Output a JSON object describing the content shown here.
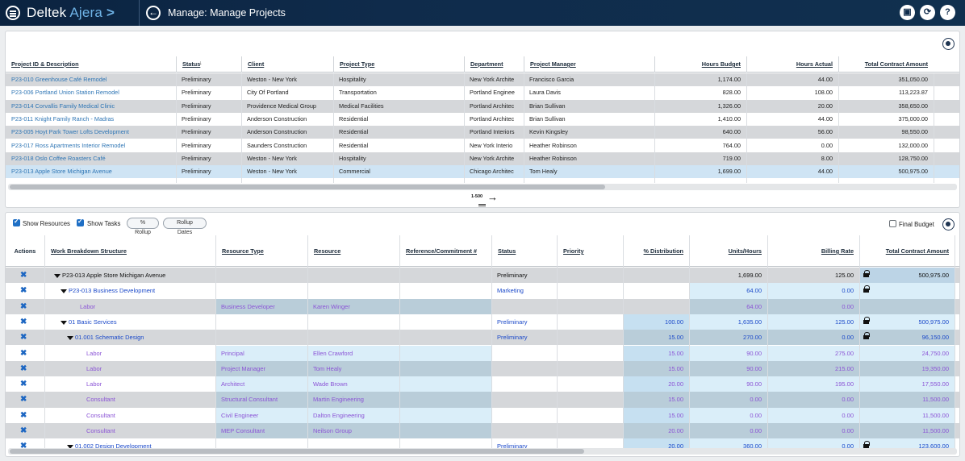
{
  "app": {
    "brand_main": "Deltek",
    "brand_sub": "Ajera",
    "brand_chevron": ">",
    "page_title": "Manage: Manage Projects"
  },
  "icons": {
    "menu": "hamburger-icon",
    "back": "back-arrow-icon",
    "save": "save-icon",
    "refresh": "refresh-icon",
    "help": "help-icon",
    "settings": "gear-icon",
    "tools": "wrench-icon",
    "lock": "lock-icon"
  },
  "projects": {
    "columns": [
      "Project ID & Description",
      "Status",
      "Client",
      "Project Type",
      "Department",
      "Project Manager",
      "Hours Budget",
      "Hours Actual",
      "Total Contract Amount"
    ],
    "sort_indicator": "↓",
    "rows": [
      [
        "P23-010 Greenhouse Café Remodel",
        "Preliminary",
        "Weston - New York",
        "Hospitality",
        "New York Archite",
        "Francisco Garcia",
        "1,174.00",
        "44.00",
        "351,050.00"
      ],
      [
        "P23-006 Portland Union Station Remodel",
        "Preliminary",
        "City Of Portland",
        "Transportation",
        "Portland Enginee",
        "Laura Davis",
        "828.00",
        "108.00",
        "113,223.87"
      ],
      [
        "P23-014 Corvallis Family Medical Clinic",
        "Preliminary",
        "Providence Medical Group",
        "Medical Facilities",
        "Portland Architec",
        "Brian Sullivan",
        "1,326.00",
        "20.00",
        "358,650.00"
      ],
      [
        "P23-011 Knight Family Ranch - Madras",
        "Preliminary",
        "Anderson Construction",
        "Residential",
        "Portland Architec",
        "Brian Sullivan",
        "1,410.00",
        "44.00",
        "375,000.00"
      ],
      [
        "P23-005 Hoyt Park Tower Lofts Development",
        "Preliminary",
        "Anderson Construction",
        "Residential",
        "Portland Interiors",
        "Kevin Kingsley",
        "640.00",
        "56.00",
        "98,550.00"
      ],
      [
        "P23-017 Ross Apartments Interior Remodel",
        "Preliminary",
        "Saunders Construction",
        "Residential",
        "New York Interio",
        "Heather Robinson",
        "764.00",
        "0.00",
        "132,000.00"
      ],
      [
        "P23-018 Oslo Coffee Roasters Café",
        "Preliminary",
        "Weston - New York",
        "Hospitality",
        "New York Archite",
        "Heather Robinson",
        "719.00",
        "8.00",
        "128,750.00"
      ],
      [
        "P23-013 Apple Store Michigan Avenue",
        "Preliminary",
        "Weston - New York",
        "Commercial",
        "Chicago Architec",
        "Tom Healy",
        "1,699.00",
        "44.00",
        "500,975.00"
      ]
    ],
    "pager": "1-500"
  },
  "wbs": {
    "show_resources_label": "Show Resources",
    "show_tasks_label": "Show Tasks",
    "rollup_pct_label": "% Rollup",
    "rollup_dates_label": "Rollup Dates",
    "final_budget_label": "Final Budget",
    "columns": [
      "Actions",
      "Work Breakdown Structure",
      "Resource Type",
      "Resource",
      "Reference/Commitment #",
      "Status",
      "Priority",
      "% Distribution",
      "Units/Hours",
      "Billing Rate",
      "Total Contract Amount"
    ],
    "rows": [
      {
        "wbs": "P23-013 Apple Store Michigan Avenue",
        "rtype": "",
        "res": "",
        "status": "Preliminary",
        "dist": "",
        "units": "1,699.00",
        "rate": "125.00",
        "total": "500,975.00"
      },
      {
        "wbs": "P23-013 Business Development",
        "rtype": "",
        "res": "",
        "status": "Marketing",
        "dist": "",
        "units": "64.00",
        "rate": "0.00",
        "total": ""
      },
      {
        "wbs": "Labor",
        "rtype": "Business Developer",
        "res": "Karen Winger",
        "status": "",
        "dist": "",
        "units": "64.00",
        "rate": "0.00",
        "total": ""
      },
      {
        "wbs": "01 Basic Services",
        "rtype": "",
        "res": "",
        "status": "Preliminary",
        "dist": "100.00",
        "units": "1,635.00",
        "rate": "125.00",
        "total": "500,975.00"
      },
      {
        "wbs": "01.001 Schematic Design",
        "rtype": "",
        "res": "",
        "status": "Preliminary",
        "dist": "15.00",
        "units": "270.00",
        "rate": "0.00",
        "total": "96,150.00"
      },
      {
        "wbs": "Labor",
        "rtype": "Principal",
        "res": "Ellen Crawford",
        "status": "",
        "dist": "15.00",
        "units": "90.00",
        "rate": "275.00",
        "total": "24,750.00"
      },
      {
        "wbs": "Labor",
        "rtype": "Project Manager",
        "res": "Tom Healy",
        "status": "",
        "dist": "15.00",
        "units": "90.00",
        "rate": "215.00",
        "total": "19,350.00"
      },
      {
        "wbs": "Labor",
        "rtype": "Architect",
        "res": "Wade Brown",
        "status": "",
        "dist": "20.00",
        "units": "90.00",
        "rate": "195.00",
        "total": "17,550.00"
      },
      {
        "wbs": "Consultant",
        "rtype": "Structural Consultant",
        "res": "Martin Engineering",
        "status": "",
        "dist": "15.00",
        "units": "0.00",
        "rate": "0.00",
        "total": "11,500.00"
      },
      {
        "wbs": "Consultant",
        "rtype": "Civil Engineer",
        "res": "Dalton Engineering",
        "status": "",
        "dist": "15.00",
        "units": "0.00",
        "rate": "0.00",
        "total": "11,500.00"
      },
      {
        "wbs": "Consultant",
        "rtype": "MEP Consultant",
        "res": "Neilson Group",
        "status": "",
        "dist": "20.00",
        "units": "0.00",
        "rate": "0.00",
        "total": "11,500.00"
      },
      {
        "wbs": "01.002 Design Development",
        "rtype": "",
        "res": "",
        "status": "Preliminary",
        "dist": "20.00",
        "units": "360.00",
        "rate": "0.00",
        "total": "123,600.00"
      }
    ]
  }
}
